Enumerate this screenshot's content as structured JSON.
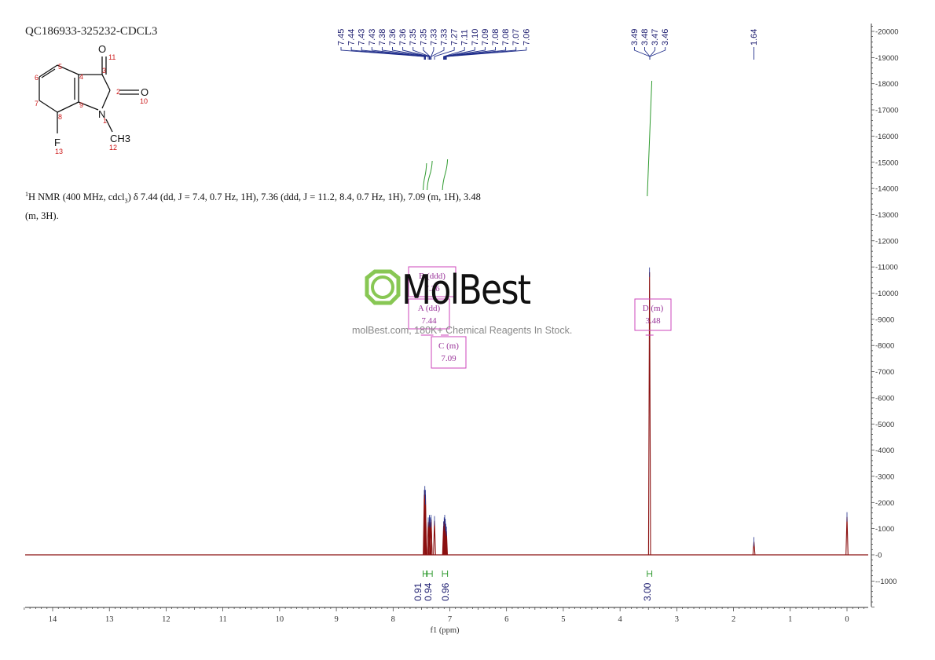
{
  "sample_id": "QC186933-325232-CDCL3",
  "nmr_description": {
    "prefix_sup": "1",
    "nucleus": "H NMR (400 MHz, cdcl",
    "solvent_sub": "3",
    "text": ") δ 7.44 (dd, J = 7.4, 0.7 Hz, 1H), 7.36 (ddd, J = 11.2, 8.4, 0.7 Hz, 1H), 7.09 (m, 1H), 3.48 (m, 3H)."
  },
  "structure": {
    "atom_labels": [
      "O",
      "O",
      "N",
      "CH3",
      "F"
    ],
    "atom_numbers": [
      "1",
      "2",
      "3",
      "4",
      "5",
      "6",
      "7",
      "8",
      "9",
      "10",
      "11",
      "12",
      "13"
    ]
  },
  "watermark": {
    "brand": "MolBest",
    "subtitle": "molBest.com, 180K+ Chemical Reagents In Stock."
  },
  "colors": {
    "spectrum": "#8b1010",
    "peak_label_line": "#1f2d8a",
    "integral": "#2e9a2e",
    "multiplet_box": "#cc44bb",
    "axis": "#333333",
    "logo_green": "#7cc242"
  },
  "chart_data": {
    "type": "line",
    "xlabel": "f1 (ppm)",
    "x_ticks": [
      14,
      13,
      12,
      11,
      10,
      9,
      8,
      7,
      6,
      5,
      4,
      3,
      2,
      1,
      0
    ],
    "xlim": [
      14.5,
      -0.35
    ],
    "x_reversed": true,
    "y_ticks": [
      20000,
      19000,
      18000,
      17000,
      16000,
      15000,
      14000,
      13000,
      12000,
      11000,
      10000,
      9000,
      8000,
      7000,
      6000,
      5000,
      4000,
      3000,
      2000,
      1000,
      0,
      -1000
    ],
    "ylim": [
      -2000,
      20300
    ],
    "y_axis_position": "right",
    "peaks": [
      {
        "ppm": 7.45,
        "height": 2300
      },
      {
        "ppm": 7.44,
        "height": 2450
      },
      {
        "ppm": 7.43,
        "height": 2300
      },
      {
        "ppm": 7.43,
        "height": 2100
      },
      {
        "ppm": 7.38,
        "height": 1250
      },
      {
        "ppm": 7.36,
        "height": 1350
      },
      {
        "ppm": 7.36,
        "height": 1300
      },
      {
        "ppm": 7.35,
        "height": 1250
      },
      {
        "ppm": 7.35,
        "height": 1200
      },
      {
        "ppm": 7.33,
        "height": 1350
      },
      {
        "ppm": 7.33,
        "height": 1250
      },
      {
        "ppm": 7.27,
        "height": 1300
      },
      {
        "ppm": 7.11,
        "height": 1100
      },
      {
        "ppm": 7.1,
        "height": 1250
      },
      {
        "ppm": 7.09,
        "height": 1350
      },
      {
        "ppm": 7.08,
        "height": 1200
      },
      {
        "ppm": 7.08,
        "height": 1100
      },
      {
        "ppm": 7.07,
        "height": 1000
      },
      {
        "ppm": 7.06,
        "height": 900
      },
      {
        "ppm": 3.48,
        "height": 10800
      },
      {
        "ppm": 1.64,
        "height": 500
      },
      {
        "ppm": 0.0,
        "height": 1450
      }
    ],
    "peak_labels_group1": [
      "7.45",
      "7.44",
      "7.43",
      "7.43",
      "7.38",
      "7.36",
      "7.36",
      "7.35",
      "7.35",
      "7.33",
      "7.33",
      "7.27",
      "7.11",
      "7.10",
      "7.09",
      "7.08",
      "7.08",
      "7.07",
      "7.06"
    ],
    "peak_labels_group2": [
      "3.49",
      "3.48",
      "3.47",
      "3.46"
    ],
    "peak_labels_group3": [
      "1.64"
    ],
    "multiplets": [
      {
        "name": "A (dd)",
        "shift": "7.44",
        "ppm": 7.44
      },
      {
        "name": "B (ddd)",
        "shift": "7.36",
        "ppm": 7.36
      },
      {
        "name": "C (m)",
        "shift": "7.09",
        "ppm": 7.09
      },
      {
        "name": "D (m)",
        "shift": "3.48",
        "ppm": 3.48
      }
    ],
    "integrals": [
      {
        "label": "0.91",
        "from": 7.47,
        "to": 7.41
      },
      {
        "label": "0.94",
        "from": 7.4,
        "to": 7.31
      },
      {
        "label": "0.96",
        "from": 7.13,
        "to": 7.04
      },
      {
        "label": "3.00",
        "from": 3.52,
        "to": 3.44
      }
    ]
  }
}
